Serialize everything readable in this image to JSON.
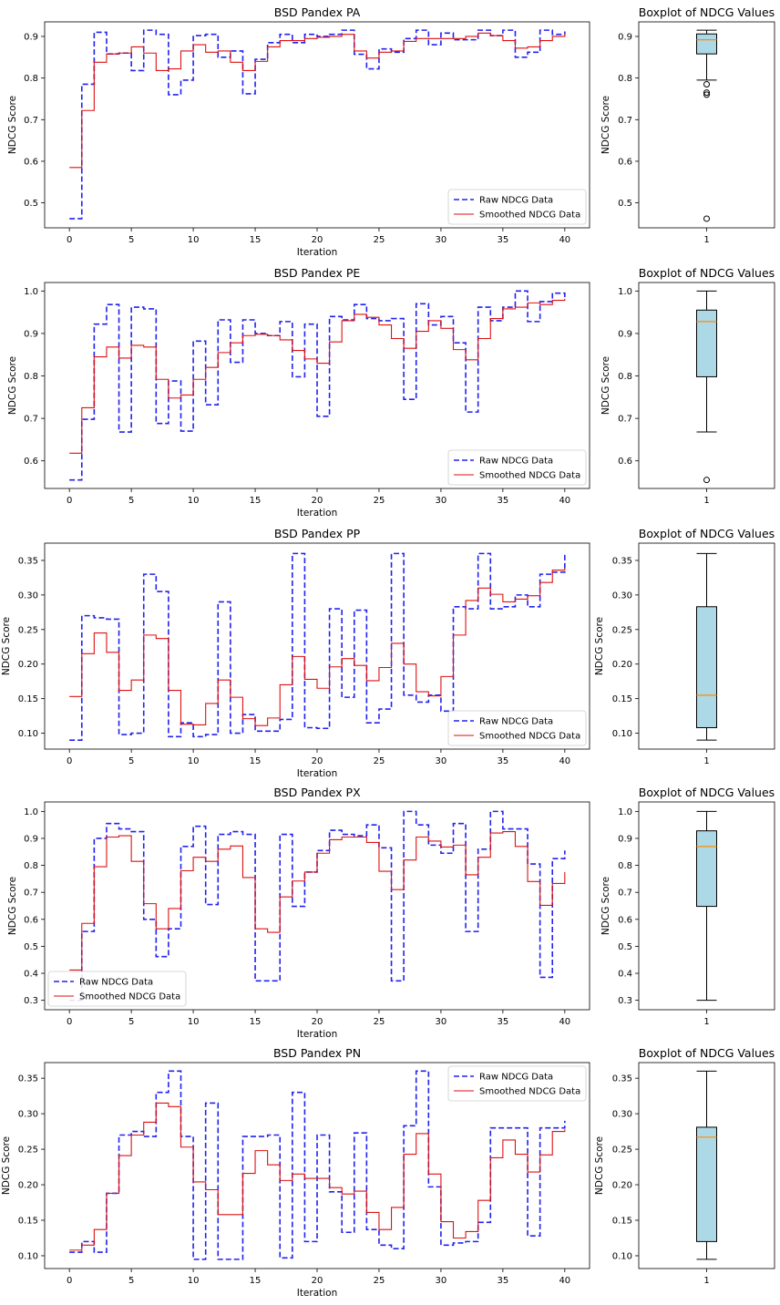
{
  "chart_data": [
    {
      "type": "line",
      "title": "BSD Pandex PA",
      "xlabel": "Iteration",
      "ylabel": "NDCG Score",
      "xlim": [
        -2,
        42
      ],
      "ylim": [
        0.44,
        0.935
      ],
      "xticks": [
        0,
        5,
        10,
        15,
        20,
        25,
        30,
        35,
        40
      ],
      "yticks": [
        0.5,
        0.6,
        0.7,
        0.8,
        0.9
      ],
      "ytick_labels": [
        "0.5",
        "0.6",
        "0.7",
        "0.8",
        "0.9"
      ],
      "legend_position": "lower-right",
      "series": [
        {
          "name": "Raw NDCG Data",
          "style": "dashed",
          "color": "#2222ee",
          "values": [
            0.462,
            0.785,
            0.91,
            0.858,
            0.86,
            0.818,
            0.915,
            0.905,
            0.76,
            0.795,
            0.902,
            0.905,
            0.85,
            0.865,
            0.762,
            0.845,
            0.885,
            0.905,
            0.885,
            0.905,
            0.9,
            0.905,
            0.915,
            0.857,
            0.822,
            0.87,
            0.862,
            0.895,
            0.915,
            0.88,
            0.908,
            0.892,
            0.892,
            0.915,
            0.902,
            0.915,
            0.85,
            0.862,
            0.915,
            0.905,
            0.912
          ]
        },
        {
          "name": "Smoothed NDCG Data",
          "style": "solid",
          "color": "#dd1111",
          "values": [
            0.585,
            0.722,
            0.838,
            0.858,
            0.86,
            0.875,
            0.86,
            0.818,
            0.822,
            0.865,
            0.88,
            0.862,
            0.865,
            0.838,
            0.818,
            0.84,
            0.875,
            0.89,
            0.89,
            0.895,
            0.898,
            0.9,
            0.905,
            0.865,
            0.848,
            0.862,
            0.865,
            0.888,
            0.895,
            0.895,
            0.895,
            0.895,
            0.9,
            0.908,
            0.902,
            0.89,
            0.872,
            0.875,
            0.89,
            0.9,
            0.908
          ]
        }
      ]
    },
    {
      "type": "line",
      "title": "BSD Pandex PE",
      "xlabel": "Iteration",
      "ylabel": "NDCG Score",
      "xlim": [
        -2,
        42
      ],
      "ylim": [
        0.535,
        1.02
      ],
      "xticks": [
        0,
        5,
        10,
        15,
        20,
        25,
        30,
        35,
        40
      ],
      "yticks": [
        0.6,
        0.7,
        0.8,
        0.9,
        1.0
      ],
      "ytick_labels": [
        "0.6",
        "0.7",
        "0.8",
        "0.9",
        "1.0"
      ],
      "legend_position": "lower-right",
      "series": [
        {
          "name": "Raw NDCG Data",
          "style": "dashed",
          "color": "#2222ee",
          "values": [
            0.555,
            0.698,
            0.922,
            0.968,
            0.668,
            0.962,
            0.958,
            0.688,
            0.788,
            0.67,
            0.882,
            0.732,
            0.932,
            0.832,
            0.932,
            0.9,
            0.895,
            0.928,
            0.798,
            0.922,
            0.705,
            0.94,
            0.932,
            0.968,
            0.935,
            0.93,
            0.935,
            0.745,
            0.97,
            0.92,
            0.94,
            0.878,
            0.715,
            0.962,
            0.93,
            0.962,
            1.0,
            0.928,
            0.975,
            0.995,
            0.98
          ]
        },
        {
          "name": "Smoothed NDCG Data",
          "style": "solid",
          "color": "#dd1111",
          "values": [
            0.618,
            0.725,
            0.845,
            0.868,
            0.842,
            0.872,
            0.868,
            0.792,
            0.748,
            0.755,
            0.792,
            0.82,
            0.855,
            0.878,
            0.895,
            0.898,
            0.895,
            0.885,
            0.86,
            0.84,
            0.83,
            0.88,
            0.93,
            0.945,
            0.938,
            0.92,
            0.888,
            0.865,
            0.905,
            0.93,
            0.912,
            0.862,
            0.838,
            0.888,
            0.935,
            0.958,
            0.962,
            0.972,
            0.968,
            0.978,
            0.982
          ]
        }
      ]
    },
    {
      "type": "line",
      "title": "BSD Pandex PP",
      "xlabel": "Iteration",
      "ylabel": "NDCG Score",
      "xlim": [
        -2,
        42
      ],
      "ylim": [
        0.077,
        0.375
      ],
      "xticks": [
        0,
        5,
        10,
        15,
        20,
        25,
        30,
        35,
        40
      ],
      "yticks": [
        0.1,
        0.15,
        0.2,
        0.25,
        0.3,
        0.35
      ],
      "ytick_labels": [
        "0.10",
        "0.15",
        "0.20",
        "0.25",
        "0.30",
        "0.35"
      ],
      "legend_position": "lower-right",
      "series": [
        {
          "name": "Raw NDCG Data",
          "style": "dashed",
          "color": "#2222ee",
          "values": [
            0.09,
            0.27,
            0.267,
            0.265,
            0.098,
            0.1,
            0.33,
            0.305,
            0.095,
            0.115,
            0.095,
            0.098,
            0.29,
            0.1,
            0.127,
            0.103,
            0.103,
            0.12,
            0.36,
            0.108,
            0.107,
            0.28,
            0.152,
            0.278,
            0.115,
            0.135,
            0.36,
            0.155,
            0.145,
            0.155,
            0.132,
            0.283,
            0.28,
            0.36,
            0.28,
            0.283,
            0.3,
            0.283,
            0.33,
            0.333,
            0.36
          ]
        },
        {
          "name": "Smoothed NDCG Data",
          "style": "solid",
          "color": "#dd1111",
          "values": [
            0.153,
            0.215,
            0.245,
            0.217,
            0.162,
            0.177,
            0.242,
            0.237,
            0.162,
            0.113,
            0.112,
            0.143,
            0.177,
            0.152,
            0.121,
            0.111,
            0.122,
            0.17,
            0.211,
            0.178,
            0.165,
            0.196,
            0.208,
            0.198,
            0.176,
            0.195,
            0.23,
            0.2,
            0.16,
            0.154,
            0.182,
            0.242,
            0.292,
            0.31,
            0.301,
            0.29,
            0.294,
            0.299,
            0.318,
            0.336,
            0.34
          ]
        }
      ]
    },
    {
      "type": "line",
      "title": "BSD Pandex PX",
      "xlabel": "Iteration",
      "ylabel": "NDCG Score",
      "xlim": [
        -2,
        42
      ],
      "ylim": [
        0.265,
        1.035
      ],
      "xticks": [
        0,
        5,
        10,
        15,
        20,
        25,
        30,
        35,
        40
      ],
      "yticks": [
        0.3,
        0.4,
        0.5,
        0.6,
        0.7,
        0.8,
        0.9,
        1.0
      ],
      "ytick_labels": [
        "0.3",
        "0.4",
        "0.5",
        "0.6",
        "0.7",
        "0.8",
        "0.9",
        "1.0"
      ],
      "legend_position": "lower-left",
      "series": [
        {
          "name": "Raw NDCG Data",
          "style": "dashed",
          "color": "#2222ee",
          "values": [
            0.3,
            0.555,
            0.9,
            0.955,
            0.935,
            0.925,
            0.6,
            0.462,
            0.565,
            0.87,
            0.945,
            0.655,
            0.915,
            0.925,
            0.915,
            0.372,
            0.372,
            0.915,
            0.648,
            0.775,
            0.855,
            0.93,
            0.915,
            0.91,
            0.95,
            0.865,
            0.372,
            1.0,
            0.95,
            0.875,
            0.845,
            0.955,
            0.555,
            0.86,
            1.0,
            0.935,
            0.935,
            0.805,
            0.385,
            0.825,
            0.855
          ]
        },
        {
          "name": "Smoothed NDCG Data",
          "style": "solid",
          "color": "#dd1111",
          "values": [
            0.412,
            0.585,
            0.795,
            0.905,
            0.91,
            0.815,
            0.658,
            0.565,
            0.64,
            0.78,
            0.83,
            0.815,
            0.86,
            0.872,
            0.755,
            0.565,
            0.552,
            0.683,
            0.742,
            0.775,
            0.845,
            0.895,
            0.905,
            0.905,
            0.885,
            0.778,
            0.71,
            0.82,
            0.905,
            0.89,
            0.868,
            0.875,
            0.765,
            0.83,
            0.92,
            0.925,
            0.87,
            0.74,
            0.652,
            0.733,
            0.775
          ]
        }
      ]
    },
    {
      "type": "line",
      "title": "BSD Pandex PN",
      "xlabel": "Iteration",
      "ylabel": "NDCG Score",
      "xlim": [
        -2,
        42
      ],
      "ylim": [
        0.082,
        0.372
      ],
      "xticks": [
        0,
        5,
        10,
        15,
        20,
        25,
        30,
        35,
        40
      ],
      "yticks": [
        0.1,
        0.15,
        0.2,
        0.25,
        0.3,
        0.35
      ],
      "ytick_labels": [
        "0.10",
        "0.15",
        "0.20",
        "0.25",
        "0.30",
        "0.35"
      ],
      "legend_position": "upper-right",
      "series": [
        {
          "name": "Raw NDCG Data",
          "style": "dashed",
          "color": "#2222ee",
          "values": [
            0.105,
            0.12,
            0.105,
            0.188,
            0.27,
            0.275,
            0.268,
            0.33,
            0.36,
            0.268,
            0.095,
            0.315,
            0.095,
            0.095,
            0.268,
            0.268,
            0.27,
            0.097,
            0.33,
            0.12,
            0.27,
            0.19,
            0.133,
            0.273,
            0.137,
            0.115,
            0.11,
            0.283,
            0.36,
            0.197,
            0.115,
            0.118,
            0.12,
            0.147,
            0.28,
            0.28,
            0.28,
            0.128,
            0.28,
            0.28,
            0.29
          ]
        },
        {
          "name": "Smoothed NDCG Data",
          "style": "solid",
          "color": "#dd1111",
          "values": [
            0.108,
            0.115,
            0.137,
            0.188,
            0.241,
            0.27,
            0.288,
            0.315,
            0.31,
            0.253,
            0.204,
            0.193,
            0.158,
            0.158,
            0.216,
            0.248,
            0.228,
            0.206,
            0.215,
            0.209,
            0.209,
            0.196,
            0.187,
            0.191,
            0.161,
            0.137,
            0.168,
            0.243,
            0.272,
            0.215,
            0.148,
            0.125,
            0.134,
            0.178,
            0.238,
            0.263,
            0.243,
            0.218,
            0.242,
            0.275,
            0.278
          ]
        }
      ]
    },
    {
      "type": "box",
      "title": "Boxplot of NDCG Values",
      "ylabel": "NDCG Score",
      "xticks": [
        "1"
      ],
      "ylim": [
        0.44,
        0.935
      ],
      "yticks": [
        0.5,
        0.6,
        0.7,
        0.8,
        0.9
      ],
      "ytick_labels": [
        "0.5",
        "0.6",
        "0.7",
        "0.8",
        "0.9"
      ],
      "box_color": "#add8e6",
      "median_color": "#ff8c00",
      "stats": {
        "q1": 0.858,
        "median": 0.892,
        "q3": 0.906,
        "whisker_low": 0.795,
        "whisker_high": 0.915,
        "outliers": [
          0.785,
          0.765,
          0.76,
          0.462
        ]
      }
    },
    {
      "type": "box",
      "title": "Boxplot of NDCG Values",
      "ylabel": "NDCG Score",
      "xticks": [
        "1"
      ],
      "ylim": [
        0.535,
        1.02
      ],
      "yticks": [
        0.6,
        0.7,
        0.8,
        0.9,
        1.0
      ],
      "ytick_labels": [
        "0.6",
        "0.7",
        "0.8",
        "0.9",
        "1.0"
      ],
      "box_color": "#add8e6",
      "median_color": "#ff8c00",
      "stats": {
        "q1": 0.798,
        "median": 0.928,
        "q3": 0.955,
        "whisker_low": 0.668,
        "whisker_high": 1.0,
        "outliers": [
          0.555
        ]
      }
    },
    {
      "type": "box",
      "title": "Boxplot of NDCG Values",
      "ylabel": "NDCG Score",
      "xticks": [
        "1"
      ],
      "ylim": [
        0.077,
        0.375
      ],
      "yticks": [
        0.1,
        0.15,
        0.2,
        0.25,
        0.3,
        0.35
      ],
      "ytick_labels": [
        "0.10",
        "0.15",
        "0.20",
        "0.25",
        "0.30",
        "0.35"
      ],
      "box_color": "#add8e6",
      "median_color": "#ff8c00",
      "stats": {
        "q1": 0.108,
        "median": 0.155,
        "q3": 0.283,
        "whisker_low": 0.09,
        "whisker_high": 0.36,
        "outliers": []
      }
    },
    {
      "type": "box",
      "title": "Boxplot of NDCG Values",
      "ylabel": "NDCG Score",
      "xticks": [
        "1"
      ],
      "ylim": [
        0.265,
        1.035
      ],
      "yticks": [
        0.3,
        0.4,
        0.5,
        0.6,
        0.7,
        0.8,
        0.9,
        1.0
      ],
      "ytick_labels": [
        "0.3",
        "0.4",
        "0.5",
        "0.6",
        "0.7",
        "0.8",
        "0.9",
        "1.0"
      ],
      "box_color": "#add8e6",
      "median_color": "#ff8c00",
      "stats": {
        "q1": 0.648,
        "median": 0.87,
        "q3": 0.928,
        "whisker_low": 0.3,
        "whisker_high": 1.0,
        "outliers": []
      }
    },
    {
      "type": "box",
      "title": "Boxplot of NDCG Values",
      "ylabel": "NDCG Score",
      "xticks": [
        "1"
      ],
      "ylim": [
        0.082,
        0.372
      ],
      "yticks": [
        0.1,
        0.15,
        0.2,
        0.25,
        0.3,
        0.35
      ],
      "ytick_labels": [
        "0.10",
        "0.15",
        "0.20",
        "0.25",
        "0.30",
        "0.35"
      ],
      "box_color": "#add8e6",
      "median_color": "#ff8c00",
      "stats": {
        "q1": 0.12,
        "median": 0.267,
        "q3": 0.281,
        "whisker_low": 0.095,
        "whisker_high": 0.36,
        "outliers": []
      }
    }
  ]
}
